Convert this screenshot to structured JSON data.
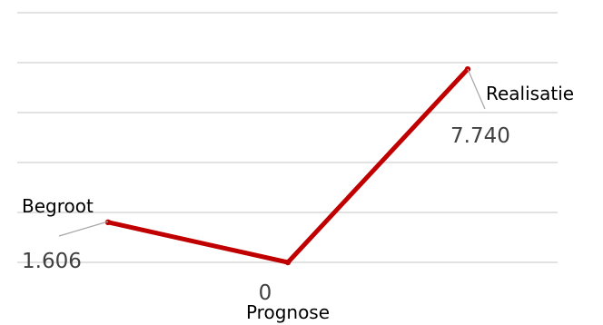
{
  "chart_data": {
    "type": "line",
    "categories": [
      "Begroot",
      "Prognose",
      "Realisatie"
    ],
    "values": [
      1606,
      0,
      7740
    ],
    "value_labels": [
      "1.606",
      "0",
      "7.740"
    ],
    "ylim": [
      0,
      10000
    ],
    "grid": true,
    "line_color": "#c00000",
    "grid_color": "#d9d9d9",
    "legend": "none"
  }
}
